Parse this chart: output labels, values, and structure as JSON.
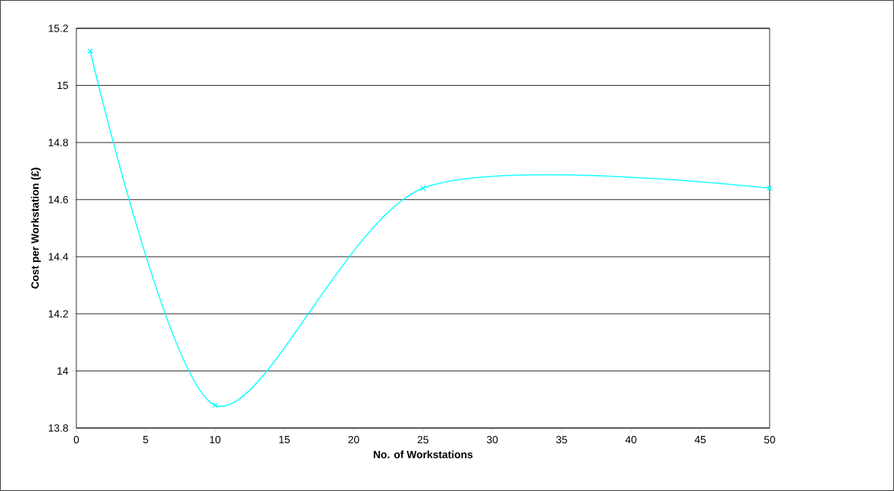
{
  "chart_data": {
    "type": "line",
    "xlabel": "No. of Workstations",
    "ylabel": "Cost per Workstation (£)",
    "x": [
      1,
      10,
      25,
      50
    ],
    "series": [
      {
        "color": "#00ffff",
        "values": [
          15.12,
          13.88,
          14.64,
          14.64
        ]
      }
    ],
    "xlim": [
      0,
      50
    ],
    "xticks": [
      0,
      5,
      10,
      15,
      20,
      25,
      30,
      35,
      40,
      45,
      50
    ],
    "ylim": [
      13.8,
      15.2
    ],
    "yticks": [
      13.8,
      14,
      14.2,
      14.4,
      14.6,
      14.8,
      15,
      15.2
    ],
    "grid": "y",
    "marker": "cross",
    "line_style": "solid"
  }
}
